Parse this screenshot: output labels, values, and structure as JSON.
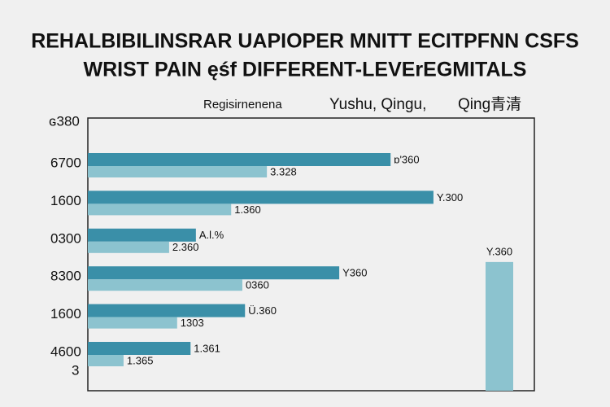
{
  "chart_data": {
    "type": "bar",
    "title": [
      "REHALBIBILINSRAR UAPIOPER MNITT ECITPFNN CSFS",
      "WRIST PAIN ęśf DIFFERENT-LEVErEGMITALS"
    ],
    "legend": [
      "Regisirnenena",
      "Yushu, Qingu,",
      "Qing青清"
    ],
    "axis_top_label": "ɢ380",
    "axis_bottom_label": "3",
    "categories": [
      "6700",
      "1600",
      "0300",
      "8300",
      "1600",
      "4600"
    ],
    "xlim": [
      0,
      100
    ],
    "series": [
      {
        "color": "#3a8fa8",
        "values": [
          67.8,
          77.4,
          24.2,
          56.3,
          35.2,
          23.0
        ],
        "bar_labels": [
          "ɒ'360",
          "Y.300",
          "A.l.%",
          "Y360",
          "Ü.360",
          "1.361"
        ]
      },
      {
        "color": "#8cc3cf",
        "values": [
          40.1,
          32.1,
          18.2,
          34.6,
          20.0,
          8.0
        ],
        "bar_labels": [
          "3.328",
          "1.360",
          "2.360",
          "0360",
          "1303",
          "1.365"
        ]
      }
    ],
    "extra_bar": {
      "color": "#8cc3cf",
      "value": 47.2,
      "label": "Y.360",
      "ylim": [
        0,
        100
      ]
    }
  }
}
